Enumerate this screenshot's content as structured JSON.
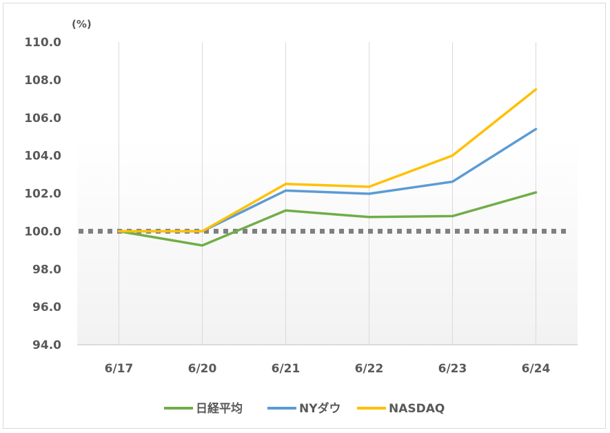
{
  "chart_data": {
    "type": "line",
    "title": "",
    "unit_label": "(%)",
    "xlabel": "",
    "ylabel": "",
    "categories": [
      "6/17",
      "6/20",
      "6/21",
      "6/22",
      "6/23",
      "6/24"
    ],
    "ylim": [
      94,
      110
    ],
    "yticks": [
      94,
      96,
      98,
      100,
      102,
      104,
      106,
      108,
      110
    ],
    "ytick_labels": [
      "94.0",
      "96.0",
      "98.0",
      "100.0",
      "102.0",
      "104.0",
      "106.0",
      "108.0",
      "110.0"
    ],
    "grid": "vertical",
    "legend_position": "bottom",
    "reference_line": {
      "value": 100,
      "style": "dotted",
      "color": "#7f7f7f"
    },
    "series": [
      {
        "name": "日経平均",
        "color": "#70ad47",
        "values": [
          100.0,
          99.25,
          101.1,
          100.75,
          100.8,
          102.05
        ]
      },
      {
        "name": "NYダウ",
        "color": "#5b9bd5",
        "values": [
          100.0,
          100.0,
          102.15,
          101.98,
          102.62,
          105.4
        ]
      },
      {
        "name": "NASDAQ",
        "color": "#ffc000",
        "values": [
          100.0,
          100.0,
          102.5,
          102.35,
          104.0,
          107.5
        ]
      }
    ]
  }
}
